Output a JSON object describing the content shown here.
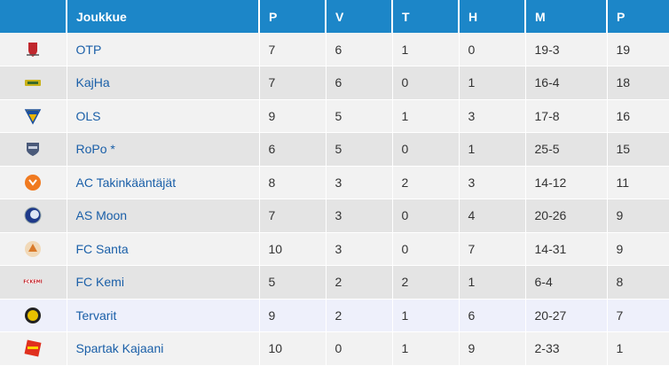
{
  "table": {
    "headers": [
      "",
      "Joukkue",
      "P",
      "V",
      "T",
      "H",
      "M",
      "P"
    ],
    "rows": [
      {
        "team": "OTP",
        "p": "7",
        "v": "6",
        "t": "1",
        "h": "0",
        "m": "19-3",
        "pts": "19",
        "crest": "otp-crest-icon",
        "crest_color": "#c0272d"
      },
      {
        "team": "KajHa",
        "p": "7",
        "v": "6",
        "t": "0",
        "h": "1",
        "m": "16-4",
        "pts": "18",
        "crest": "kajha-crest-icon",
        "crest_color": "#c9b21a"
      },
      {
        "team": "OLS",
        "p": "9",
        "v": "5",
        "t": "1",
        "h": "3",
        "m": "17-8",
        "pts": "16",
        "crest": "ols-crest-icon",
        "crest_color": "#e8b400"
      },
      {
        "team": "RoPo *",
        "p": "6",
        "v": "5",
        "t": "0",
        "h": "1",
        "m": "25-5",
        "pts": "15",
        "crest": "ropo-crest-icon",
        "crest_color": "#4a5a7a"
      },
      {
        "team": "AC Takinkääntäjät",
        "p": "8",
        "v": "3",
        "t": "2",
        "h": "3",
        "m": "14-12",
        "pts": "11",
        "crest": "ac-takinkaantajat-crest-icon",
        "crest_color": "#f07a20"
      },
      {
        "team": "AS Moon",
        "p": "7",
        "v": "3",
        "t": "0",
        "h": "4",
        "m": "20-26",
        "pts": "9",
        "crest": "as-moon-crest-icon",
        "crest_color": "#1f3a8a"
      },
      {
        "team": "FC Santa",
        "p": "10",
        "v": "3",
        "t": "0",
        "h": "7",
        "m": "14-31",
        "pts": "9",
        "crest": "fc-santa-crest-icon",
        "crest_color": "#d97a2a"
      },
      {
        "team": "FC Kemi",
        "p": "5",
        "v": "2",
        "t": "2",
        "h": "1",
        "m": "6-4",
        "pts": "8",
        "crest": "fc-kemi-crest-icon",
        "crest_color": "#c0272d"
      },
      {
        "team": "Tervarit",
        "p": "9",
        "v": "2",
        "t": "1",
        "h": "6",
        "m": "20-27",
        "pts": "7",
        "crest": "tervarit-crest-icon",
        "crest_color": "#e8c000"
      },
      {
        "team": "Spartak Kajaani",
        "p": "10",
        "v": "0",
        "t": "1",
        "h": "9",
        "m": "2-33",
        "pts": "1",
        "crest": "spartak-kajaani-crest-icon",
        "crest_color": "#e0301e"
      }
    ]
  },
  "colors": {
    "header_bg": "#1c86c8",
    "link": "#1a5fa8",
    "row_odd": "#f2f2f2",
    "row_even": "#e4e4e4",
    "row_highlight": "#eef0fb"
  }
}
